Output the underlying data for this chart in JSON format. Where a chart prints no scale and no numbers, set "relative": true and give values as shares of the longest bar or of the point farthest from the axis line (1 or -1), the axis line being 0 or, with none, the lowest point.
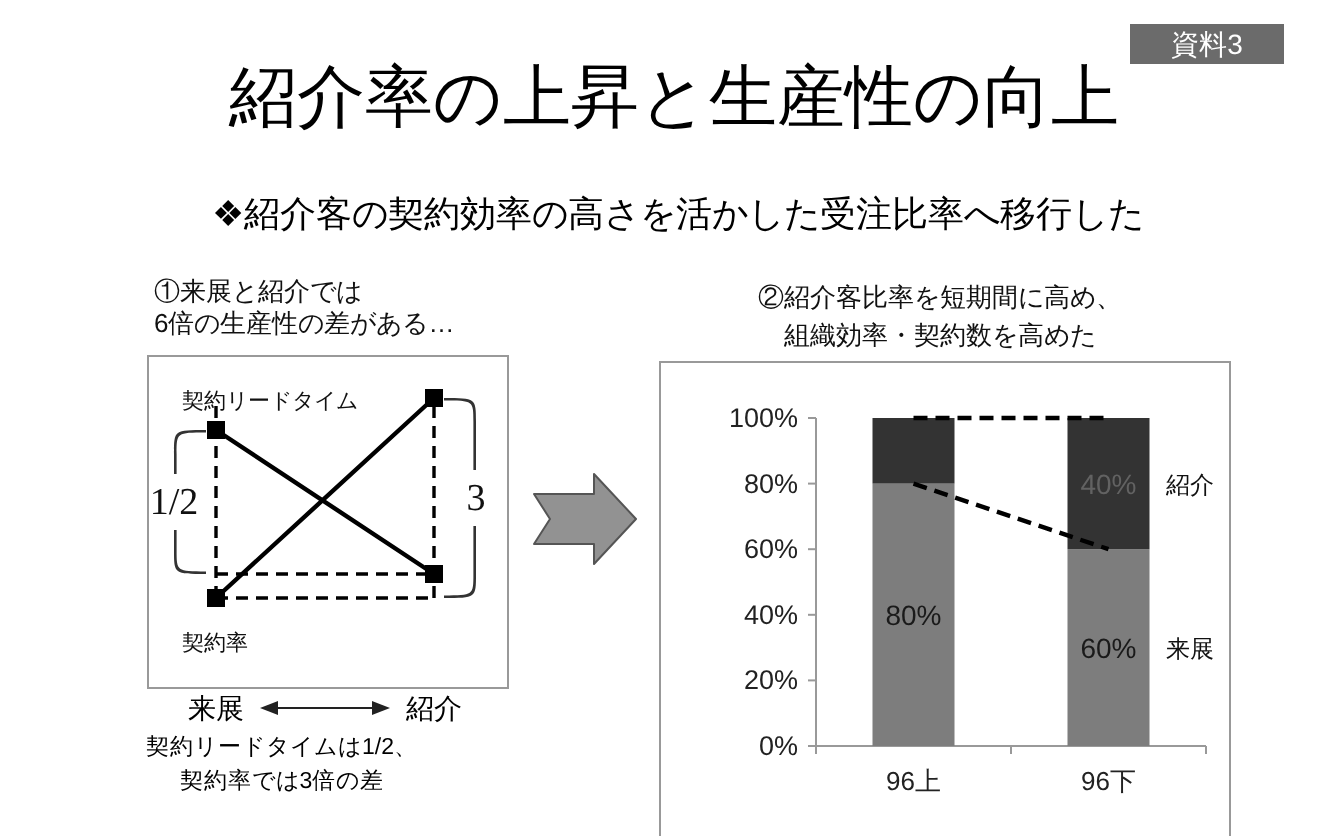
{
  "chart_data": [
    {
      "type": "line",
      "title": "①来展と紹介では6倍の生産性の差がある…",
      "categories": [
        "来展",
        "紹介"
      ],
      "relative": true,
      "marker": "square",
      "line_style": "solid",
      "series": [
        {
          "name": "契約リードタイム",
          "color": "#000000",
          "values": [
            0.84,
            0.12
          ]
        },
        {
          "name": "契約率",
          "color": "#000000",
          "values": [
            0,
            1
          ]
        }
      ],
      "ref_lines": [
        {
          "axis": "y",
          "value": 0.12,
          "line_style": "dashed"
        },
        {
          "axis": "y",
          "value": 0,
          "line_style": "dashed"
        },
        {
          "axis": "x",
          "value": "来展",
          "line_style": "dashed"
        },
        {
          "axis": "x",
          "value": "紹介",
          "line_style": "dashed"
        }
      ],
      "annotations": [
        "資料3",
        "紹介率の上昇と生産性の向上",
        "❖紹介客の契約効率の高さを活かした受注比率へ移行した",
        "1/2",
        "3",
        "契約リードタイムは1/2、契約率では3倍の差"
      ]
    },
    {
      "type": "bar",
      "stacked": true,
      "title": "②紹介客比率を短期間に高め、組織効率・契約数を高めた",
      "categories": [
        "96上",
        "96下"
      ],
      "ylim": [
        0,
        100
      ],
      "yticks": [
        {
          "value": 0,
          "label": "0%"
        },
        {
          "value": 20,
          "label": "20%"
        },
        {
          "value": 40,
          "label": "40%"
        },
        {
          "value": 60,
          "label": "60%"
        },
        {
          "value": 80,
          "label": "80%"
        },
        {
          "value": 100,
          "label": "100%"
        }
      ],
      "series": [
        {
          "name": "来展",
          "color": "#7d7d7d",
          "values": [
            80,
            60
          ],
          "value_labels": [
            "80%",
            "60%"
          ]
        },
        {
          "name": "紹介",
          "color": "#333333",
          "values": [
            20,
            40
          ],
          "value_labels": [
            null,
            "40%"
          ]
        },
        {
          "type": "line",
          "color": "#000000",
          "line_style": "dashed",
          "values": [
            100,
            100
          ]
        },
        {
          "type": "line",
          "color": "#000000",
          "line_style": "dashed",
          "values": [
            80,
            60
          ]
        }
      ]
    }
  ]
}
